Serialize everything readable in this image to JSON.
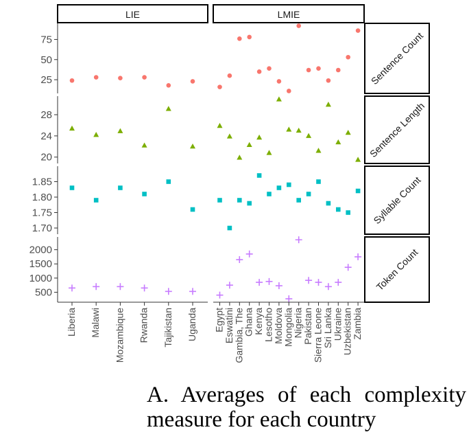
{
  "caption": "A. Averages of each complexity measure for each country",
  "chart_data": {
    "type": "scatter",
    "grid": false,
    "legend": "none",
    "facet_columns": [
      "LIE",
      "LMIE"
    ],
    "facet_rows": [
      "Sentence Count",
      "Sentence Length",
      "Syllable Count",
      "Token Count"
    ],
    "categories": {
      "LIE": [
        "Liberia",
        "Malawi",
        "Mozambique",
        "Rwanda",
        "Tajikistan",
        "Uganda"
      ],
      "LMIE": [
        "Egypt",
        "Eswatini",
        "Gambia, The",
        "Ghana",
        "Kenya",
        "Lesotho",
        "Moldova",
        "Mongolia",
        "Nigeria",
        "Pakistan",
        "Sierra Leone",
        "Sri Lanka",
        "Ukraine",
        "Uzbekistan",
        "Zambia"
      ]
    },
    "panels": [
      {
        "name": "Sentence Count",
        "marker": "circle",
        "color": "#f8766d",
        "ylim": [
          8,
          95
        ],
        "yticks": [
          "25",
          "50",
          "75"
        ],
        "values": {
          "LIE": [
            24,
            28,
            27,
            28,
            18,
            23
          ],
          "LMIE": [
            16,
            30,
            76,
            78,
            35,
            39,
            23,
            11,
            92,
            37,
            39,
            24,
            37,
            53,
            86
          ]
        }
      },
      {
        "name": "Sentence Length",
        "marker": "triangle",
        "color": "#7cae00",
        "ylim": [
          18.8,
          31.5
        ],
        "yticks": [
          "20",
          "24",
          "28"
        ],
        "values": {
          "LIE": [
            25.4,
            24.2,
            24.9,
            22.2,
            29.1,
            22.0
          ],
          "LMIE": [
            25.9,
            23.9,
            19.9,
            22.3,
            23.7,
            20.8,
            30.9,
            25.2,
            25.0,
            24.0,
            21.2,
            29.9,
            22.8,
            24.6,
            19.5
          ]
        }
      },
      {
        "name": "Syllable Count",
        "marker": "square",
        "color": "#00bfc4",
        "ylim": [
          1.68,
          1.9
        ],
        "yticks": [
          "1.70",
          "1.75",
          "1.80",
          "1.85"
        ],
        "values": {
          "LIE": [
            1.83,
            1.79,
            1.83,
            1.81,
            1.85,
            1.76
          ],
          "LMIE": [
            1.79,
            1.7,
            1.79,
            1.78,
            1.87,
            1.81,
            1.83,
            1.84,
            1.79,
            1.81,
            1.85,
            1.78,
            1.76,
            1.75,
            1.82
          ]
        }
      },
      {
        "name": "Token Count",
        "marker": "plus",
        "color": "#c77cff",
        "ylim": [
          150,
          2450
        ],
        "yticks": [
          "500",
          "1000",
          "1500",
          "2000"
        ],
        "values": {
          "LIE": [
            650,
            700,
            700,
            650,
            530,
            530
          ],
          "LMIE": [
            400,
            750,
            1650,
            1850,
            850,
            880,
            730,
            270,
            2350,
            920,
            850,
            700,
            850,
            1380,
            1750
          ]
        }
      }
    ]
  }
}
